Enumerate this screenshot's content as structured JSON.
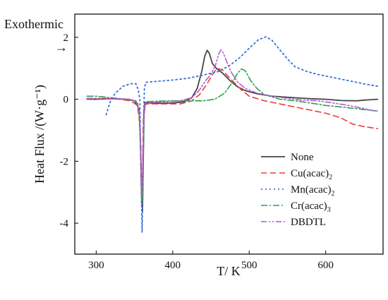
{
  "chart_data": {
    "type": "line",
    "annotation": "Exothermic",
    "annotation_arrow": "→",
    "xlabel": "T/ K",
    "ylabel": "Heat Flux /(W·g⁻¹)",
    "xlim": [
      272,
      675
    ],
    "ylim": [
      -5.0,
      2.75
    ],
    "xticks": [
      300,
      400,
      500,
      600
    ],
    "yticks": [
      2,
      0,
      -2,
      -4
    ],
    "legend_position": "lower-right",
    "series": [
      {
        "name": "None",
        "name_base": "None",
        "name_sub": "",
        "color": "#444444",
        "dash": "",
        "width": 1.8,
        "points": [
          [
            288,
            0
          ],
          [
            300,
            0
          ],
          [
            320,
            0.02
          ],
          [
            340,
            0
          ],
          [
            350,
            -0.05
          ],
          [
            356,
            -0.3
          ],
          [
            358,
            -1.5
          ],
          [
            359.5,
            -3.2
          ],
          [
            360.5,
            -3.6
          ],
          [
            361.5,
            -2.0
          ],
          [
            362.5,
            -0.5
          ],
          [
            364,
            -0.1
          ],
          [
            370,
            -0.12
          ],
          [
            380,
            -0.13
          ],
          [
            400,
            -0.12
          ],
          [
            415,
            -0.08
          ],
          [
            425,
            0.05
          ],
          [
            432,
            0.35
          ],
          [
            438,
            0.9
          ],
          [
            442,
            1.4
          ],
          [
            445,
            1.58
          ],
          [
            448,
            1.48
          ],
          [
            452,
            1.15
          ],
          [
            457,
            1.0
          ],
          [
            465,
            0.85
          ],
          [
            475,
            0.6
          ],
          [
            485,
            0.4
          ],
          [
            495,
            0.28
          ],
          [
            510,
            0.18
          ],
          [
            530,
            0.1
          ],
          [
            560,
            0.05
          ],
          [
            580,
            0.02
          ],
          [
            600,
            0.0
          ],
          [
            620,
            -0.04
          ],
          [
            640,
            -0.05
          ],
          [
            655,
            -0.02
          ],
          [
            668,
            0.0
          ]
        ]
      },
      {
        "name": "Cu(acac)2",
        "name_base": "Cu(acac)",
        "name_sub": "2",
        "color": "#e8403a",
        "dash": "8,5",
        "width": 1.6,
        "points": [
          [
            288,
            0
          ],
          [
            310,
            0.02
          ],
          [
            330,
            0
          ],
          [
            345,
            -0.05
          ],
          [
            354,
            -0.2
          ],
          [
            357,
            -0.8
          ],
          [
            358.5,
            -2.5
          ],
          [
            359.5,
            -3.5
          ],
          [
            360.5,
            -2.5
          ],
          [
            361.5,
            -0.7
          ],
          [
            363,
            -0.15
          ],
          [
            375,
            -0.15
          ],
          [
            395,
            -0.15
          ],
          [
            410,
            -0.15
          ],
          [
            425,
            -0.05
          ],
          [
            435,
            0.15
          ],
          [
            445,
            0.5
          ],
          [
            452,
            0.8
          ],
          [
            458,
            1.0
          ],
          [
            465,
            0.95
          ],
          [
            472,
            0.75
          ],
          [
            480,
            0.55
          ],
          [
            490,
            0.3
          ],
          [
            500,
            0.1
          ],
          [
            520,
            -0.05
          ],
          [
            540,
            -0.15
          ],
          [
            560,
            -0.25
          ],
          [
            580,
            -0.35
          ],
          [
            600,
            -0.45
          ],
          [
            620,
            -0.6
          ],
          [
            635,
            -0.8
          ],
          [
            650,
            -0.88
          ],
          [
            668,
            -0.95
          ]
        ]
      },
      {
        "name": "Mn(acac)2",
        "name_base": "Mn(acac)",
        "name_sub": "2",
        "color": "#3a6fd8",
        "dash": "2,4",
        "width": 1.8,
        "points": [
          [
            313,
            -0.5
          ],
          [
            318,
            -0.1
          ],
          [
            325,
            0.2
          ],
          [
            335,
            0.42
          ],
          [
            345,
            0.5
          ],
          [
            352,
            0.5
          ],
          [
            355,
            0.3
          ],
          [
            357,
            0
          ],
          [
            358,
            -1.5
          ],
          [
            359,
            -3.0
          ],
          [
            360,
            -4.3
          ],
          [
            361,
            -3.0
          ],
          [
            362,
            -0.5
          ],
          [
            363,
            0.35
          ],
          [
            365,
            0.55
          ],
          [
            380,
            0.58
          ],
          [
            400,
            0.62
          ],
          [
            420,
            0.68
          ],
          [
            440,
            0.78
          ],
          [
            460,
            0.9
          ],
          [
            475,
            1.1
          ],
          [
            488,
            1.35
          ],
          [
            500,
            1.65
          ],
          [
            512,
            1.92
          ],
          [
            522,
            2.02
          ],
          [
            530,
            1.9
          ],
          [
            540,
            1.6
          ],
          [
            550,
            1.3
          ],
          [
            560,
            1.05
          ],
          [
            575,
            0.9
          ],
          [
            590,
            0.8
          ],
          [
            610,
            0.7
          ],
          [
            630,
            0.6
          ],
          [
            650,
            0.5
          ],
          [
            668,
            0.42
          ]
        ]
      },
      {
        "name": "Cr(acac)3",
        "name_base": "Cr(acac)",
        "name_sub": "3",
        "color": "#2aa34a",
        "dash": "9,3,2,3",
        "width": 1.6,
        "points": [
          [
            288,
            0.1
          ],
          [
            300,
            0.1
          ],
          [
            320,
            0.05
          ],
          [
            340,
            0
          ],
          [
            352,
            -0.05
          ],
          [
            356,
            -0.3
          ],
          [
            358,
            -1.5
          ],
          [
            359.5,
            -2.8
          ],
          [
            360.5,
            -3.3
          ],
          [
            361.5,
            -1.8
          ],
          [
            362.5,
            -0.3
          ],
          [
            365,
            -0.08
          ],
          [
            380,
            -0.06
          ],
          [
            400,
            -0.05
          ],
          [
            420,
            -0.05
          ],
          [
            440,
            -0.05
          ],
          [
            455,
            0
          ],
          [
            468,
            0.2
          ],
          [
            478,
            0.55
          ],
          [
            485,
            0.85
          ],
          [
            490,
            0.98
          ],
          [
            495,
            0.92
          ],
          [
            502,
            0.6
          ],
          [
            510,
            0.35
          ],
          [
            520,
            0.15
          ],
          [
            540,
            0
          ],
          [
            560,
            -0.05
          ],
          [
            580,
            -0.12
          ],
          [
            600,
            -0.2
          ],
          [
            620,
            -0.25
          ],
          [
            640,
            -0.3
          ],
          [
            655,
            -0.35
          ],
          [
            668,
            -0.38
          ]
        ]
      },
      {
        "name": "DBDTL",
        "name_base": "DBDTL",
        "name_sub": "",
        "color": "#b45ad6",
        "dash": "8,3,2,3,2,3",
        "width": 1.6,
        "points": [
          [
            288,
            0.03
          ],
          [
            310,
            0.03
          ],
          [
            330,
            0.02
          ],
          [
            345,
            0
          ],
          [
            354,
            -0.1
          ],
          [
            357,
            -0.6
          ],
          [
            358.5,
            -2.0
          ],
          [
            359.5,
            -3.2
          ],
          [
            360.5,
            -2.6
          ],
          [
            361.5,
            -1.2
          ],
          [
            363,
            -0.2
          ],
          [
            370,
            -0.1
          ],
          [
            390,
            -0.08
          ],
          [
            410,
            -0.05
          ],
          [
            425,
            0.05
          ],
          [
            435,
            0.3
          ],
          [
            443,
            0.6
          ],
          [
            450,
            0.8
          ],
          [
            456,
            1.1
          ],
          [
            460,
            1.45
          ],
          [
            463,
            1.6
          ],
          [
            466,
            1.5
          ],
          [
            470,
            1.25
          ],
          [
            476,
            0.9
          ],
          [
            485,
            0.55
          ],
          [
            495,
            0.35
          ],
          [
            510,
            0.2
          ],
          [
            530,
            0.1
          ],
          [
            550,
            0.03
          ],
          [
            570,
            -0.03
          ],
          [
            590,
            -0.05
          ],
          [
            610,
            -0.12
          ],
          [
            630,
            -0.2
          ],
          [
            650,
            -0.3
          ],
          [
            665,
            -0.38
          ]
        ]
      }
    ]
  }
}
